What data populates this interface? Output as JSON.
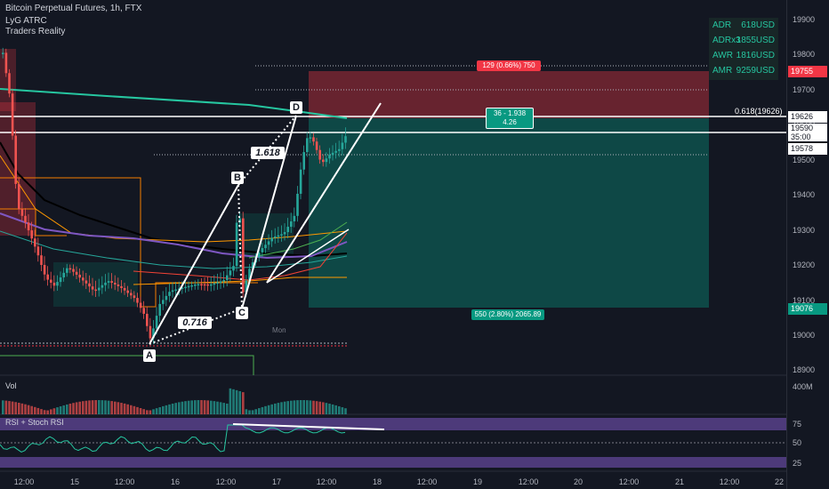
{
  "legend": {
    "symbol": "Bitcoin Perpetual Futures, 1h, FTX",
    "indicator1": "LyG ATRC",
    "indicator2": "Traders Reality"
  },
  "stats": [
    {
      "label": "ADR",
      "value": "618USD"
    },
    {
      "label": "ADRx3",
      "value": "1855USD"
    },
    {
      "label": "AWR",
      "value": "1816USD"
    },
    {
      "label": "AMR",
      "value": "9259USD"
    }
  ],
  "price_axis": {
    "ticks": [
      "19900",
      "19800",
      "19700",
      "19600",
      "19500",
      "19400",
      "19300",
      "19200",
      "19100",
      "19000",
      "18900"
    ],
    "labels": {
      "stop": "19755",
      "fib": "19626",
      "current_price": "19590",
      "countdown": "35:00",
      "ma": "19578",
      "target": "19076"
    }
  },
  "time_axis": [
    "12:00",
    "15",
    "12:00",
    "16",
    "12:00",
    "17",
    "12:00",
    "18",
    "12:00",
    "19",
    "12:00",
    "20",
    "12:00",
    "21",
    "12:00",
    "22"
  ],
  "pattern": {
    "A": "A",
    "B": "B",
    "C": "C",
    "D": "D",
    "ratio_bc": "0.716",
    "ratio_cd": "1.618"
  },
  "position": {
    "risk_label": "129 (0.66%) 750",
    "ratio_line1": "36 - 1.938",
    "ratio_line2": "4.26",
    "reward_label": "550 (2.80%) 2065.89"
  },
  "fib_label": "0.618(19626)",
  "day_marker": "Mon",
  "volume": {
    "title": "Vol",
    "axis_label": "400M"
  },
  "rsi": {
    "title": "RSI + Stoch RSI",
    "ticks": [
      "75",
      "50",
      "25"
    ]
  },
  "colors": {
    "background": "#131722",
    "bull": "#26a69a",
    "bear": "#ef5350",
    "risk_zone": "#f23645",
    "reward_zone": "#089981",
    "rsi_band": "#7e57c2"
  }
}
